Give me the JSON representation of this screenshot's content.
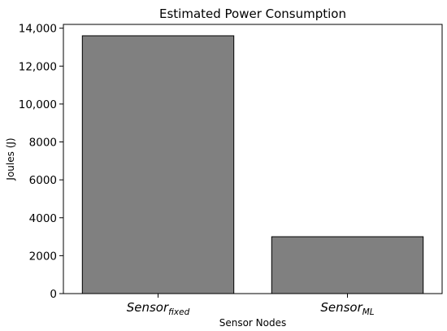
{
  "chart_data": {
    "type": "bar",
    "title": "Estimated Power Consumption",
    "xlabel": "Sensor Nodes",
    "ylabel": "Joules (J)",
    "categories": [
      {
        "base": "Sensor",
        "sub": "fixed"
      },
      {
        "base": "Sensor",
        "sub": "ML"
      }
    ],
    "values": [
      13600,
      3000
    ],
    "ylim": [
      0,
      14200
    ],
    "yticks": [
      0,
      2000,
      4000,
      6000,
      8000,
      10000,
      12000,
      14000
    ],
    "ytick_labels": [
      "0",
      "2000",
      "4000",
      "6000",
      "8000",
      "10,000",
      "12,000",
      "14,000"
    ],
    "bar_color": "#808080",
    "grid": false
  }
}
